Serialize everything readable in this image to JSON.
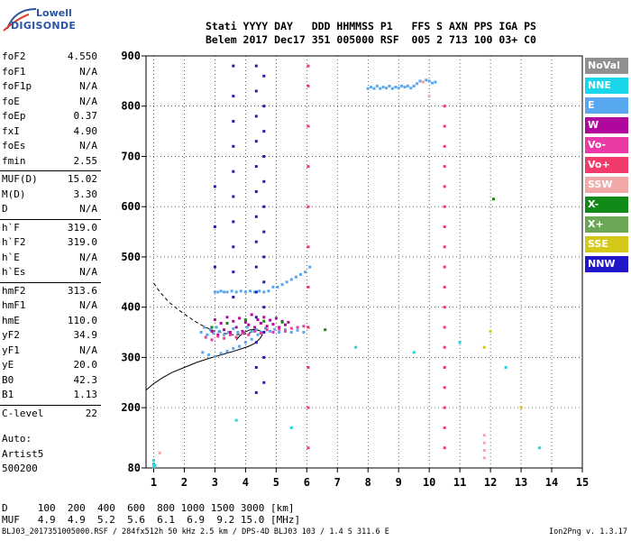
{
  "logo": {
    "top": "Lowell",
    "main": "DIGISONDE"
  },
  "header": {
    "labels": "Stati YYYY DAY   DDD HHMMSS P1   FFS S AXN PPS IGA PS",
    "values": "Belem 2017 Dec17 351 005000 RSF  005 2 713 100 03+ C0"
  },
  "params": [
    {
      "k": "foF2",
      "v": "4.550"
    },
    {
      "k": "foF1",
      "v": "N/A"
    },
    {
      "k": "foF1p",
      "v": "N/A"
    },
    {
      "k": "foE",
      "v": "N/A"
    },
    {
      "k": "foEp",
      "v": "0.37"
    },
    {
      "k": "fxI",
      "v": "4.90"
    },
    {
      "k": "foEs",
      "v": "N/A"
    },
    {
      "k": "fmin",
      "v": "2.55"
    },
    {
      "k": "MUF(D)",
      "v": "15.02"
    },
    {
      "k": "M(D)",
      "v": "3.30"
    },
    {
      "k": "D",
      "v": "N/A"
    },
    {
      "k": "h`F",
      "v": "319.0"
    },
    {
      "k": "h`F2",
      "v": "319.0"
    },
    {
      "k": "h`E",
      "v": "N/A"
    },
    {
      "k": "h`Es",
      "v": "N/A"
    },
    {
      "k": "hmF2",
      "v": "313.6"
    },
    {
      "k": "hmF1",
      "v": "N/A"
    },
    {
      "k": "hmE",
      "v": "110.0"
    },
    {
      "k": "yF2",
      "v": "34.9"
    },
    {
      "k": "yF1",
      "v": "N/A"
    },
    {
      "k": "yE",
      "v": "20.0"
    },
    {
      "k": "B0",
      "v": "42.3"
    },
    {
      "k": "B1",
      "v": "1.13"
    },
    {
      "k": "C-level",
      "v": "22"
    }
  ],
  "auto": {
    "line1": "Auto:",
    "line2": "Artist5",
    "line3": "500200"
  },
  "legend": [
    {
      "label": "NoVal",
      "color": "#909090"
    },
    {
      "label": "NNE",
      "color": "#19d6ea"
    },
    {
      "label": "E",
      "color": "#58a8f0"
    },
    {
      "label": "W",
      "color": "#b0089c"
    },
    {
      "label": "Vo-",
      "color": "#ea3aa6"
    },
    {
      "label": "Vo+",
      "color": "#f23a6c"
    },
    {
      "label": "SSW",
      "color": "#f0a8a8"
    },
    {
      "label": "X-",
      "color": "#118a18"
    },
    {
      "label": "X+",
      "color": "#6aa858"
    },
    {
      "label": "SSE",
      "color": "#d4c818"
    },
    {
      "label": "NNW",
      "color": "#2018c8"
    }
  ],
  "bottom": {
    "d_row": "D     100  200  400  600  800 1000 1500 3000 [km]",
    "muf_row": "MUF   4.9  4.9  5.2  5.6  6.1  6.9  9.2 15.0 [MHz]"
  },
  "footer": {
    "left": "BLJ03_2017351005000.RSF / 284fx512h 50 kHz 2.5 km / DPS-4D BLJ03 103 / 1.4 S 311.6 E",
    "right": "Ion2Png v. 1.3.17"
  },
  "chart_data": {
    "type": "scatter",
    "title": "",
    "xlabel": "",
    "ylabel": "",
    "xlim": [
      0.75,
      15
    ],
    "ylim": [
      80,
      900
    ],
    "xticks": [
      1,
      2,
      3,
      4,
      5,
      6,
      7,
      8,
      9,
      10,
      11,
      12,
      13,
      14,
      15
    ],
    "yticks": [
      80,
      200,
      300,
      400,
      500,
      600,
      700,
      800,
      900
    ],
    "series": [
      {
        "color": "#58a8f0",
        "points": [
          [
            2.55,
            350
          ],
          [
            2.65,
            360
          ],
          [
            2.75,
            345
          ],
          [
            2.85,
            355
          ],
          [
            2.95,
            348
          ],
          [
            3.05,
            360
          ],
          [
            3.15,
            352
          ],
          [
            3.3,
            345
          ],
          [
            3.45,
            350
          ],
          [
            3.6,
            357
          ],
          [
            3.75,
            350
          ],
          [
            3.9,
            348
          ],
          [
            4.05,
            360
          ],
          [
            4.2,
            352
          ],
          [
            4.35,
            355
          ],
          [
            4.5,
            350
          ],
          [
            4.65,
            358
          ],
          [
            4.8,
            352
          ],
          [
            4.95,
            356
          ],
          [
            5.1,
            350
          ],
          [
            5.3,
            355
          ],
          [
            5.5,
            350
          ],
          [
            5.7,
            354
          ],
          [
            5.9,
            350
          ],
          [
            2.6,
            310
          ],
          [
            2.8,
            305
          ],
          [
            3.0,
            302
          ],
          [
            3.2,
            308
          ],
          [
            3.4,
            312
          ],
          [
            3.6,
            318
          ],
          [
            3.8,
            322
          ],
          [
            4.0,
            330
          ],
          [
            4.2,
            336
          ],
          [
            4.4,
            345
          ],
          [
            3.0,
            430
          ],
          [
            3.1,
            430
          ],
          [
            3.2,
            432
          ],
          [
            3.3,
            430
          ],
          [
            3.4,
            430
          ],
          [
            3.55,
            432
          ],
          [
            3.7,
            430
          ],
          [
            3.85,
            432
          ],
          [
            4.0,
            430
          ],
          [
            4.15,
            432
          ],
          [
            4.3,
            430
          ],
          [
            4.45,
            432
          ],
          [
            4.6,
            430
          ],
          [
            4.75,
            432
          ],
          [
            4.9,
            440
          ],
          [
            5.05,
            440
          ],
          [
            5.2,
            445
          ],
          [
            5.35,
            450
          ],
          [
            5.5,
            455
          ],
          [
            5.65,
            460
          ],
          [
            5.8,
            465
          ],
          [
            5.95,
            470
          ],
          [
            6.1,
            480
          ],
          [
            8.0,
            835
          ],
          [
            8.1,
            838
          ],
          [
            8.2,
            835
          ],
          [
            8.3,
            840
          ],
          [
            8.4,
            835
          ],
          [
            8.5,
            838
          ],
          [
            8.6,
            836
          ],
          [
            8.7,
            840
          ],
          [
            8.8,
            835
          ],
          [
            8.9,
            838
          ],
          [
            9.0,
            836
          ],
          [
            9.1,
            840
          ],
          [
            9.2,
            838
          ],
          [
            9.3,
            840
          ],
          [
            9.4,
            836
          ],
          [
            9.5,
            840
          ],
          [
            9.6,
            845
          ],
          [
            9.7,
            850
          ],
          [
            9.8,
            848
          ],
          [
            9.9,
            852
          ],
          [
            10.0,
            850
          ],
          [
            10.1,
            846
          ],
          [
            10.2,
            848
          ]
        ]
      },
      {
        "color": "#b0089c",
        "points": [
          [
            2.9,
            352
          ],
          [
            3.0,
            375
          ],
          [
            3.1,
            345
          ],
          [
            3.2,
            368
          ],
          [
            3.3,
            355
          ],
          [
            3.4,
            380
          ],
          [
            3.5,
            350
          ],
          [
            3.6,
            372
          ],
          [
            3.7,
            360
          ],
          [
            3.8,
            378
          ],
          [
            3.9,
            352
          ],
          [
            4.0,
            370
          ],
          [
            4.1,
            365
          ],
          [
            4.2,
            385
          ],
          [
            4.3,
            360
          ],
          [
            4.4,
            375
          ],
          [
            4.5,
            368
          ],
          [
            4.6,
            380
          ],
          [
            4.7,
            362
          ],
          [
            4.8,
            374
          ],
          [
            4.9,
            366
          ],
          [
            5.0,
            378
          ],
          [
            5.1,
            360
          ],
          [
            5.2,
            372
          ],
          [
            5.3,
            365
          ],
          [
            5.4,
            370
          ]
        ]
      },
      {
        "color": "#ea3aa6",
        "points": [
          [
            2.7,
            340
          ],
          [
            2.9,
            335
          ],
          [
            3.1,
            342
          ],
          [
            3.3,
            338
          ],
          [
            3.5,
            345
          ],
          [
            3.7,
            340
          ],
          [
            3.9,
            348
          ],
          [
            4.1,
            345
          ],
          [
            4.3,
            352
          ],
          [
            4.5,
            348
          ],
          [
            4.7,
            355
          ],
          [
            4.9,
            350
          ],
          [
            5.1,
            356
          ],
          [
            5.3,
            352
          ],
          [
            5.5,
            358
          ],
          [
            5.7,
            360
          ],
          [
            5.9,
            362
          ]
        ]
      },
      {
        "color": "#2018c8",
        "points": [
          [
            4.35,
            230
          ],
          [
            4.35,
            280
          ],
          [
            4.35,
            330
          ],
          [
            4.35,
            380
          ],
          [
            4.35,
            430
          ],
          [
            4.35,
            480
          ],
          [
            4.35,
            530
          ],
          [
            4.35,
            580
          ],
          [
            4.35,
            630
          ],
          [
            4.35,
            680
          ],
          [
            4.35,
            730
          ],
          [
            4.35,
            780
          ],
          [
            4.35,
            830
          ],
          [
            4.35,
            880
          ],
          [
            4.6,
            250
          ],
          [
            4.6,
            300
          ],
          [
            4.6,
            350
          ],
          [
            4.6,
            400
          ],
          [
            4.6,
            450
          ],
          [
            4.6,
            500
          ],
          [
            4.6,
            550
          ],
          [
            4.6,
            600
          ],
          [
            4.6,
            650
          ],
          [
            4.6,
            700
          ],
          [
            4.6,
            750
          ],
          [
            4.6,
            800
          ],
          [
            4.6,
            860
          ],
          [
            3.6,
            420
          ],
          [
            3.6,
            470
          ],
          [
            3.6,
            520
          ],
          [
            3.6,
            570
          ],
          [
            3.6,
            620
          ],
          [
            3.6,
            670
          ],
          [
            3.6,
            720
          ],
          [
            3.6,
            770
          ],
          [
            3.6,
            820
          ],
          [
            3.6,
            880
          ],
          [
            3.0,
            480
          ],
          [
            3.0,
            560
          ],
          [
            3.0,
            640
          ]
        ]
      },
      {
        "color": "#f23a6c",
        "points": [
          [
            10.5,
            120
          ],
          [
            10.5,
            160
          ],
          [
            10.5,
            200
          ],
          [
            10.5,
            240
          ],
          [
            10.5,
            280
          ],
          [
            10.5,
            320
          ],
          [
            10.5,
            360
          ],
          [
            10.5,
            400
          ],
          [
            10.5,
            440
          ],
          [
            10.5,
            480
          ],
          [
            10.5,
            520
          ],
          [
            10.5,
            560
          ],
          [
            10.5,
            600
          ],
          [
            10.5,
            640
          ],
          [
            10.5,
            680
          ],
          [
            10.5,
            720
          ],
          [
            10.5,
            760
          ],
          [
            10.5,
            800
          ],
          [
            6.05,
            120
          ],
          [
            6.05,
            200
          ],
          [
            6.05,
            280
          ],
          [
            6.05,
            360
          ],
          [
            6.05,
            440
          ],
          [
            6.05,
            520
          ],
          [
            6.05,
            600
          ],
          [
            6.05,
            680
          ],
          [
            6.05,
            760
          ],
          [
            6.05,
            840
          ],
          [
            6.05,
            880
          ]
        ]
      },
      {
        "color": "#19d6ea",
        "points": [
          [
            1.0,
            82
          ],
          [
            1.0,
            88
          ],
          [
            1.0,
            95
          ],
          [
            1.05,
            85
          ],
          [
            3.7,
            175
          ],
          [
            5.5,
            160
          ],
          [
            7.6,
            320
          ],
          [
            9.5,
            310
          ],
          [
            11.0,
            330
          ],
          [
            12.5,
            280
          ],
          [
            13.6,
            120
          ]
        ]
      },
      {
        "color": "#118a18",
        "points": [
          [
            2.9,
            360
          ],
          [
            3.4,
            368
          ],
          [
            4.0,
            375
          ],
          [
            4.6,
            372
          ],
          [
            5.2,
            370
          ],
          [
            6.6,
            355
          ],
          [
            12.1,
            615
          ]
        ]
      },
      {
        "color": "#d4c818",
        "points": [
          [
            11.8,
            320
          ],
          [
            12.0,
            352
          ],
          [
            13.0,
            200
          ]
        ]
      },
      {
        "color": "#f0a8a8",
        "points": [
          [
            1.2,
            110
          ],
          [
            11.8,
            100
          ],
          [
            11.8,
            115
          ],
          [
            11.8,
            130
          ],
          [
            11.8,
            145
          ],
          [
            10.0,
            820
          ],
          [
            9.8,
            848
          ]
        ]
      }
    ],
    "trace_lines": [
      {
        "style": "dashed",
        "points": [
          [
            1.0,
            448
          ],
          [
            1.2,
            430
          ],
          [
            1.5,
            410
          ],
          [
            1.8,
            395
          ],
          [
            2.1,
            382
          ],
          [
            2.4,
            370
          ],
          [
            2.7,
            360
          ],
          [
            3.0,
            352
          ],
          [
            3.3,
            348
          ],
          [
            3.6,
            345
          ],
          [
            3.9,
            346
          ],
          [
            4.2,
            350
          ],
          [
            4.4,
            354
          ],
          [
            4.55,
            350
          ]
        ]
      },
      {
        "style": "solid",
        "points": [
          [
            0.75,
            235
          ],
          [
            1.0,
            248
          ],
          [
            1.3,
            260
          ],
          [
            1.6,
            270
          ],
          [
            2.0,
            280
          ],
          [
            2.4,
            290
          ],
          [
            2.8,
            298
          ],
          [
            3.2,
            305
          ],
          [
            3.6,
            312
          ],
          [
            3.9,
            318
          ],
          [
            4.1,
            322
          ],
          [
            4.3,
            328
          ],
          [
            4.45,
            336
          ],
          [
            4.55,
            345
          ],
          [
            4.5,
            352
          ],
          [
            4.35,
            356
          ],
          [
            4.15,
            355
          ],
          [
            3.95,
            350
          ],
          [
            3.8,
            342
          ],
          [
            3.7,
            335
          ]
        ]
      }
    ]
  }
}
